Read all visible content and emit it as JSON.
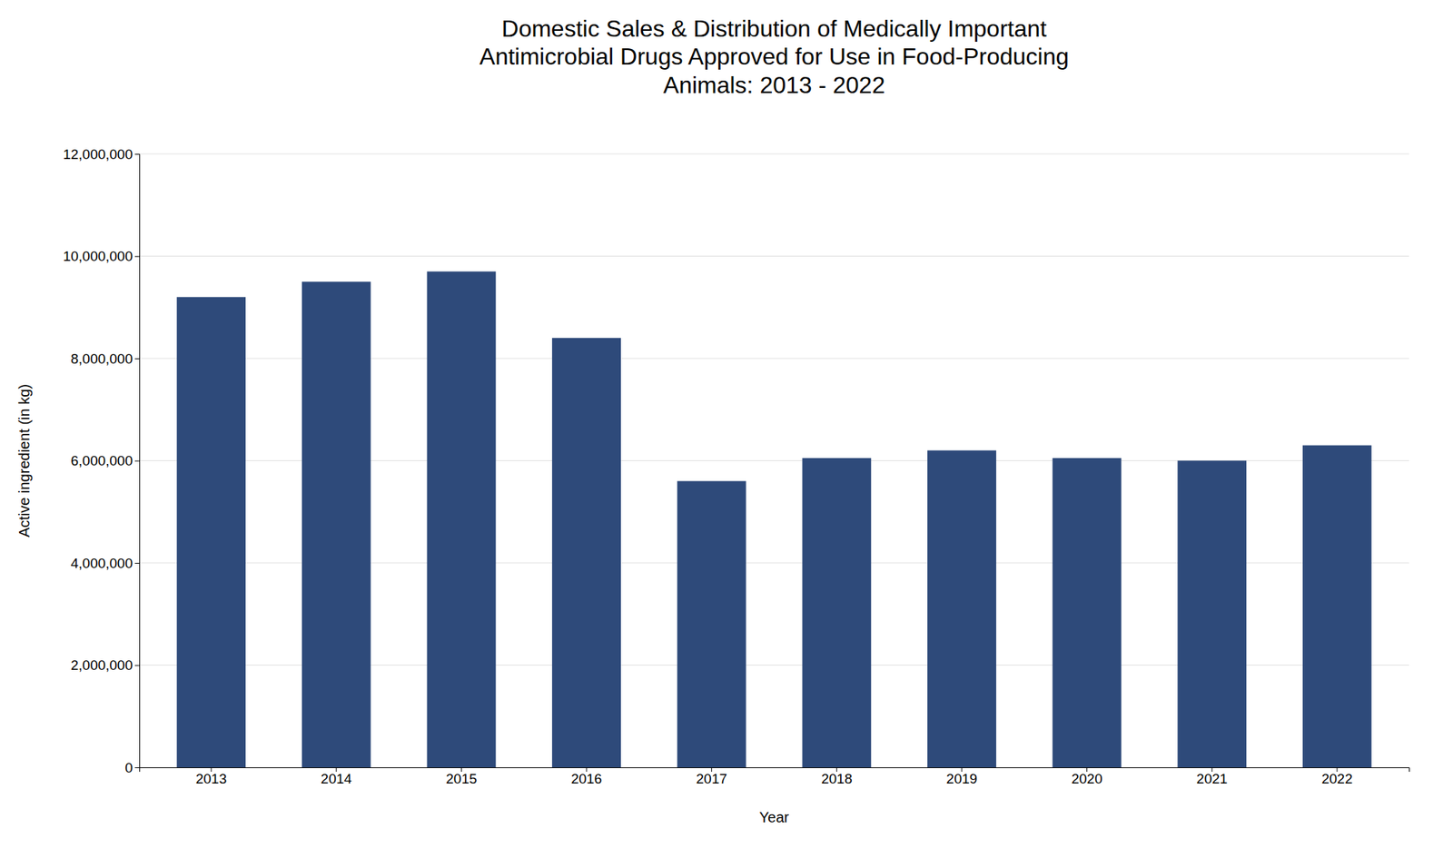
{
  "chart_data": {
    "type": "bar",
    "title": "Domestic Sales & Distribution of Medically Important\nAntimicrobial Drugs Approved for Use in Food-Producing\nAnimals: 2013 - 2022",
    "xlabel": "Year",
    "ylabel": "Active ingredient (in kg)",
    "categories": [
      "2013",
      "2014",
      "2015",
      "2016",
      "2017",
      "2018",
      "2019",
      "2020",
      "2021",
      "2022"
    ],
    "values": [
      9200000,
      9500000,
      9700000,
      8400000,
      5600000,
      6050000,
      6200000,
      6050000,
      6000000,
      6300000
    ],
    "color": "#2E4A7A",
    "ylim": [
      0,
      12000000
    ],
    "yticks": [
      0,
      {
        "value": 2000000,
        "label": "2,000,000"
      },
      {
        "value": 4000000,
        "label": "4,000,000"
      },
      {
        "value": 6000000,
        "label": "6,000,000"
      },
      {
        "value": 8000000,
        "label": "8,000,000"
      },
      {
        "value": 10000000,
        "label": "10,000,000"
      },
      {
        "value": 12000000,
        "label": "12,000,000"
      }
    ],
    "grid": true
  }
}
